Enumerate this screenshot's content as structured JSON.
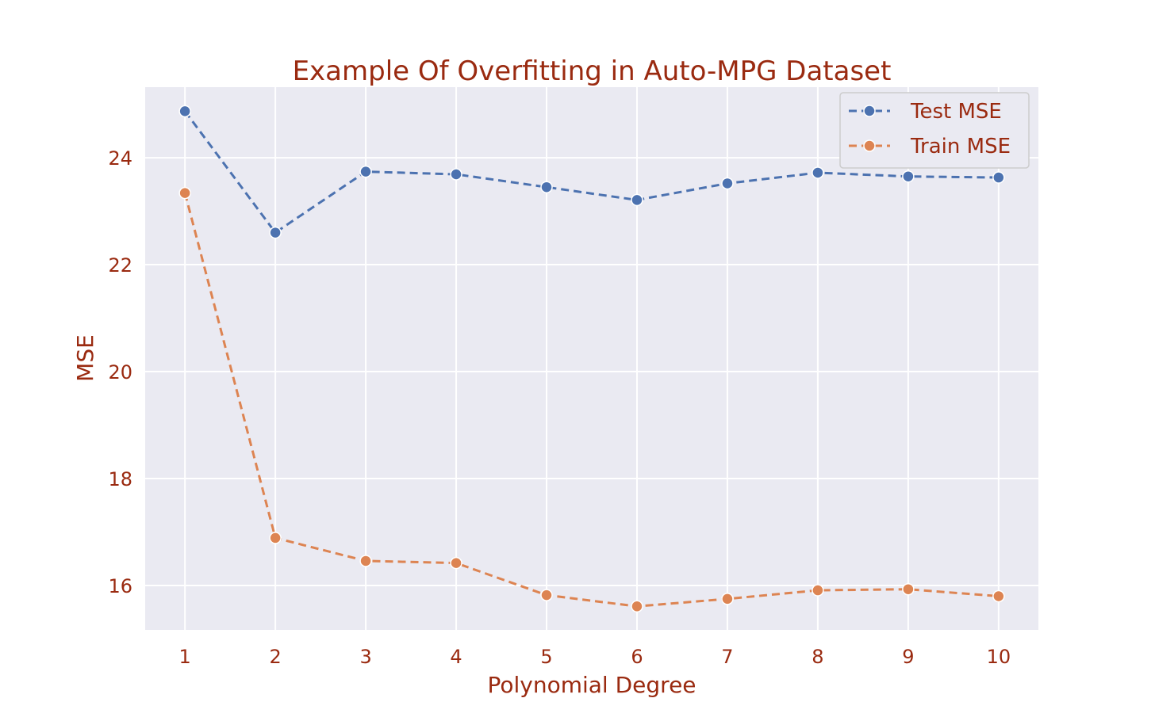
{
  "chart_data": {
    "type": "line",
    "title": "Example Of Overfitting in Auto-MPG Dataset",
    "xlabel": "Polynomial Degree",
    "ylabel": "MSE",
    "x": [
      1,
      2,
      3,
      4,
      5,
      6,
      7,
      8,
      9,
      10
    ],
    "xticks": [
      "1",
      "2",
      "3",
      "4",
      "5",
      "6",
      "7",
      "8",
      "9",
      "10"
    ],
    "yticks": [
      "16",
      "18",
      "20",
      "22",
      "24"
    ],
    "xlim": [
      0.56,
      10.44
    ],
    "ylim": [
      15.17,
      25.32
    ],
    "grid": true,
    "legend_position": "top-right",
    "series": [
      {
        "name": "Test MSE",
        "color": "#4c72b0",
        "linestyle": "dashed",
        "marker": "circle",
        "values": [
          24.87,
          22.6,
          23.74,
          23.69,
          23.45,
          23.21,
          23.52,
          23.72,
          23.65,
          23.63
        ]
      },
      {
        "name": "Train MSE",
        "color": "#dd8452",
        "linestyle": "dashed",
        "marker": "circle",
        "values": [
          23.34,
          16.89,
          16.46,
          16.42,
          15.82,
          15.61,
          15.75,
          15.91,
          15.93,
          15.8
        ]
      }
    ],
    "colors": {
      "plot_background": "#eaeaf2",
      "grid": "#ffffff",
      "text": "#9a2a10"
    }
  }
}
